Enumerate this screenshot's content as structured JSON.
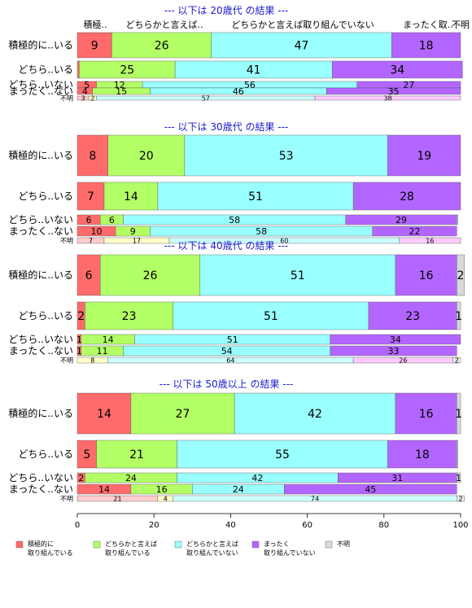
{
  "chart_data": {
    "type": "bar",
    "orientation": "horizontal",
    "stacked": true,
    "xlim": [
      0,
      100
    ],
    "xticks": [
      0,
      20,
      40,
      60,
      80,
      100
    ],
    "column_headers": [
      "積極..",
      "どちらかと言えば..",
      "どちらかと言えば取り組んでいない",
      "まったく取..",
      "不明"
    ],
    "legend": {
      "position": "bottom",
      "items": [
        {
          "lines": [
            "積極的に",
            "取り組んでいる"
          ],
          "color": "#ff6b6b"
        },
        {
          "lines": [
            "どちらかと言えば",
            "取り組んでいる"
          ],
          "color": "#b3ff66"
        },
        {
          "lines": [
            "どちらかと言えば",
            "取り組んでいない"
          ],
          "color": "#99ffff"
        },
        {
          "lines": [
            "まったく",
            "取り組んでいない"
          ],
          "color": "#b366ff"
        },
        {
          "lines": [
            "不明"
          ],
          "color": "#d9d9d9"
        }
      ]
    },
    "light_colors": [
      "#ffcccc",
      "#ffffcc",
      "#ccffff",
      "#ffccff",
      "#ebebeb"
    ],
    "panels": [
      {
        "title": "--- 以下は 20歳代 の結果 ---",
        "show_headers": true,
        "rows": [
          {
            "label": "積極的に..いる",
            "values": [
              9,
              26,
              47,
              18,
              0
            ],
            "labels": [
              "9",
              "26",
              "47",
              "18",
              ""
            ]
          },
          {
            "label": "どちら..いる",
            "values": [
              0.5,
              25,
              41,
              34,
              0
            ],
            "labels": [
              "",
              "25",
              "41",
              "34",
              ""
            ]
          },
          {
            "label": "どちら..いない",
            "values": [
              5,
              12,
              56,
              27,
              0
            ],
            "labels": [
              "5",
              "12",
              "56",
              "27",
              ""
            ]
          },
          {
            "label": "まったく..ない",
            "values": [
              4,
              15,
              46,
              35,
              0
            ],
            "labels": [
              "4",
              "15",
              "46",
              "35",
              ""
            ]
          },
          {
            "label": "不明",
            "values": [
              3,
              2,
              57,
              38,
              0
            ],
            "labels": [
              "3",
              "2",
              "57",
              "38",
              ""
            ]
          }
        ]
      },
      {
        "title": "--- 以下は 30歳代 の結果 ---",
        "show_headers": false,
        "rows": [
          {
            "label": "積極的に..いる",
            "values": [
              8,
              20,
              53,
              19,
              0
            ],
            "labels": [
              "8",
              "20",
              "53",
              "19",
              ""
            ]
          },
          {
            "label": "どちら..いる",
            "values": [
              7,
              14,
              51,
              28,
              0
            ],
            "labels": [
              "7",
              "14",
              "51",
              "28",
              ""
            ]
          },
          {
            "label": "どちら..いない",
            "values": [
              6,
              6,
              58,
              29,
              0.3
            ],
            "labels": [
              "6",
              "6",
              "58",
              "29",
              ""
            ]
          },
          {
            "label": "まったく..ない",
            "values": [
              10,
              9,
              58,
              22,
              0
            ],
            "labels": [
              "10",
              "9",
              "58",
              "22",
              ""
            ]
          },
          {
            "label": "不明",
            "values": [
              7,
              17,
              60,
              16,
              0
            ],
            "labels": [
              "7",
              "17",
              "60",
              "16",
              ""
            ]
          }
        ]
      },
      {
        "title": "--- 以下は 40歳代 の結果 ---",
        "show_headers": false,
        "rows": [
          {
            "label": "積極的に..いる",
            "values": [
              6,
              26,
              51,
              16,
              2
            ],
            "labels": [
              "6",
              "26",
              "51",
              "16",
              "2"
            ]
          },
          {
            "label": "どちら..いる",
            "values": [
              2,
              23,
              51,
              23,
              1
            ],
            "labels": [
              "2",
              "23",
              "51",
              "23",
              "1"
            ]
          },
          {
            "label": "どちら..いない",
            "values": [
              1,
              14,
              51,
              34,
              0
            ],
            "labels": [
              "1",
              "14",
              "51",
              "34",
              ""
            ]
          },
          {
            "label": "まったく..ない",
            "values": [
              1,
              11,
              54,
              33,
              0
            ],
            "labels": [
              "1",
              "11",
              "54",
              "33",
              ""
            ]
          },
          {
            "label": "不明",
            "values": [
              0,
              8,
              64,
              26,
              2
            ],
            "labels": [
              "",
              "8",
              "64",
              "26",
              "2"
            ]
          }
        ]
      },
      {
        "title": "--- 以下は 50歳以上 の結果 ---",
        "show_headers": false,
        "rows": [
          {
            "label": "積極的に..いる",
            "values": [
              14,
              27,
              42,
              16,
              1
            ],
            "labels": [
              "14",
              "27",
              "42",
              "16",
              "1"
            ]
          },
          {
            "label": "どちら..いる",
            "values": [
              5,
              21,
              55,
              18,
              0.3
            ],
            "labels": [
              "5",
              "21",
              "55",
              "18",
              ""
            ]
          },
          {
            "label": "どちら..いない",
            "values": [
              2,
              24,
              42,
              31,
              1
            ],
            "labels": [
              "2",
              "24",
              "42",
              "31",
              "1"
            ]
          },
          {
            "label": "まったく..ない",
            "values": [
              14,
              16,
              24,
              45,
              0
            ],
            "labels": [
              "14",
              "16",
              "24",
              "45",
              ""
            ]
          },
          {
            "label": "不明",
            "values": [
              21,
              4,
              74,
              0,
              2
            ],
            "labels": [
              "21",
              "4",
              "74",
              "",
              "2"
            ]
          }
        ]
      }
    ]
  }
}
